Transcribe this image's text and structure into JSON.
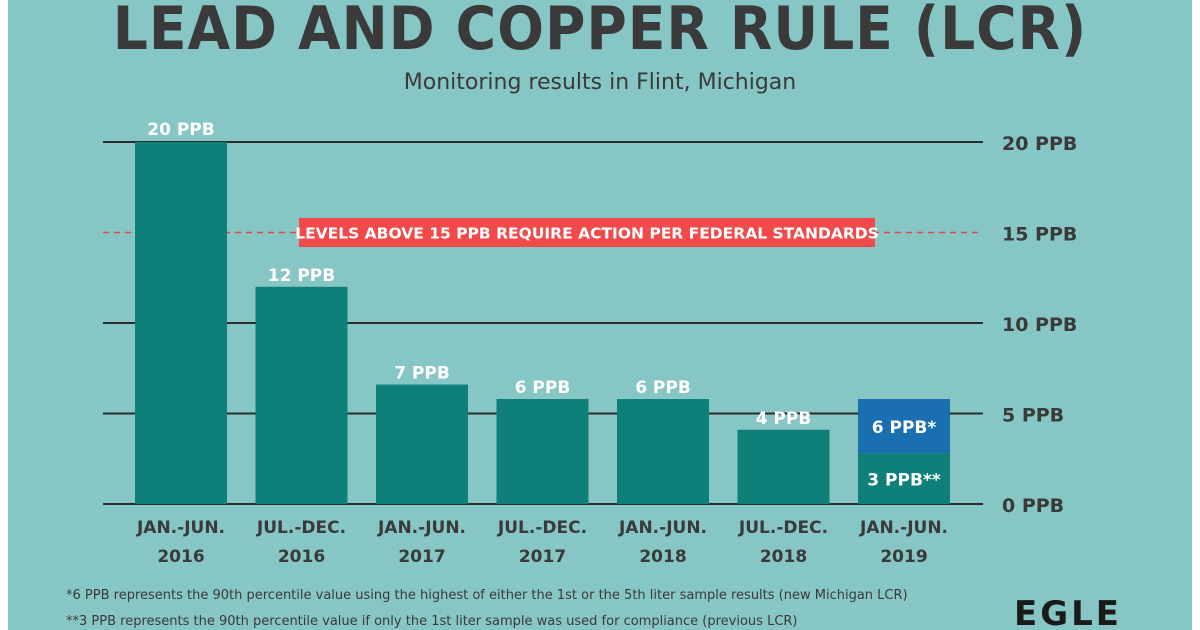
{
  "chart_data": {
    "type": "bar",
    "title": "LEAD AND COPPER RULE (LCR)",
    "subtitle": "Monitoring results in Flint, Michigan",
    "categories": [
      [
        "JAN.-JUN.",
        "2016"
      ],
      [
        "JUL.-DEC.",
        "2016"
      ],
      [
        "JAN.-JUN.",
        "2017"
      ],
      [
        "JUL.-DEC.",
        "2017"
      ],
      [
        "JAN.-JUN.",
        "2018"
      ],
      [
        "JUL.-DEC.",
        "2018"
      ],
      [
        "JAN.-JUN.",
        "2019"
      ]
    ],
    "values": [
      20,
      12,
      6.6,
      5.8,
      5.8,
      4.1,
      2.8
    ],
    "value_labels": [
      "20 PPB",
      "12 PPB",
      "7 PPB",
      "6 PPB",
      "6 PPB",
      "4 PPB",
      "3 PPB**"
    ],
    "stacked_extra": {
      "category_index": 6,
      "value": 5.8,
      "label": "6 PPB*",
      "color": "#1a6fb0"
    },
    "ylim": [
      0,
      20
    ],
    "yticks": [
      0,
      5,
      10,
      15,
      20
    ],
    "ytick_labels": [
      "0 PPB",
      "5 PPB",
      "10 PPB",
      "15 PPB",
      "20 PPB"
    ],
    "threshold": {
      "value": 15,
      "label": "LEVELS ABOVE 15 PPB REQUIRE ACTION PER FEDERAL STANDARDS",
      "line_color": "#e84545",
      "box_color": "#f04a4a"
    },
    "bar_color": "#0e8079",
    "gridline_color": "#2c2c2c",
    "grid": true,
    "legend": "none"
  },
  "footnotes": [
    "*6 PPB represents the 90th percentile value using the highest of either the 1st or the 5th liter sample results (new Michigan LCR)",
    "**3 PPB represents the 90th percentile value if only the 1st liter sample was used for compliance (previous LCR)"
  ],
  "logo": "EGLE"
}
